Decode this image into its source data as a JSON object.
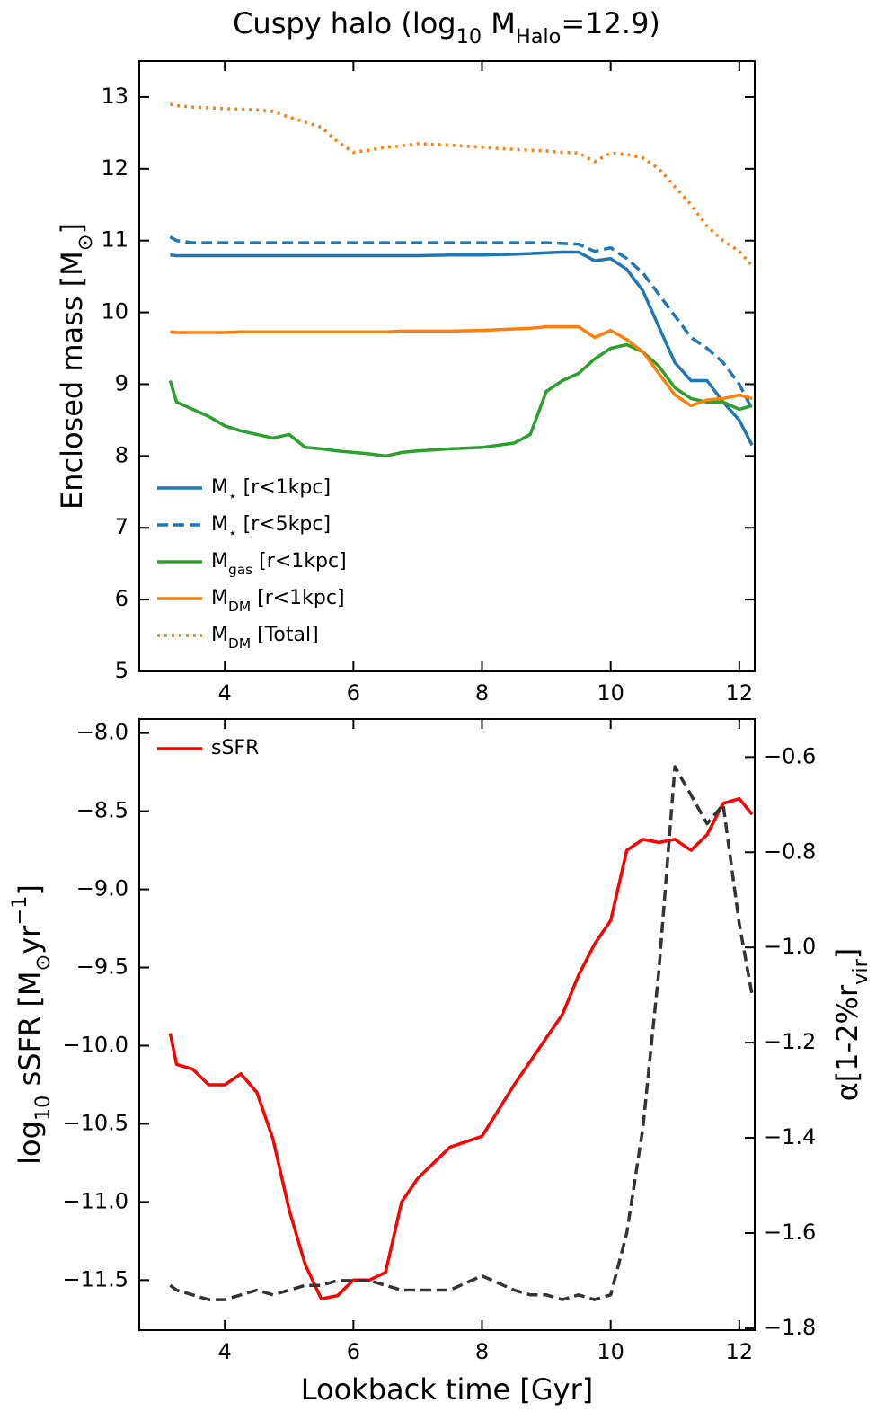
{
  "chart_data": [
    {
      "type": "line",
      "title": [
        "Cuspy halo (log",
        {
          "sub": "10"
        },
        " M",
        {
          "sub": "Halo"
        },
        "=12.9)"
      ],
      "ylabel": [
        "Enclosed mass [M",
        {
          "sub": "⊙"
        },
        "]"
      ],
      "x": [
        3.15,
        3.25,
        3.5,
        3.75,
        4.0,
        4.25,
        4.5,
        4.75,
        5.0,
        5.25,
        5.5,
        5.75,
        6.0,
        6.25,
        6.5,
        6.75,
        7.0,
        7.5,
        8.0,
        8.5,
        8.75,
        9.0,
        9.25,
        9.5,
        9.75,
        10.0,
        10.25,
        10.5,
        10.75,
        11.0,
        11.25,
        11.5,
        11.75,
        12.0,
        12.2
      ],
      "series": [
        {
          "name": [
            "M",
            {
              "sub": "⋆"
            },
            " [r<1kpc]"
          ],
          "color": "#1f77b4",
          "linestyle": "solid",
          "values": [
            10.8,
            10.79,
            10.79,
            10.79,
            10.79,
            10.79,
            10.79,
            10.79,
            10.79,
            10.79,
            10.79,
            10.79,
            10.79,
            10.79,
            10.79,
            10.79,
            10.79,
            10.8,
            10.8,
            10.81,
            10.82,
            10.83,
            10.84,
            10.84,
            10.72,
            10.75,
            10.6,
            10.3,
            9.8,
            9.3,
            9.05,
            9.05,
            8.75,
            8.5,
            8.15
          ]
        },
        {
          "name": [
            "M",
            {
              "sub": "⋆"
            },
            " [r<5kpc]"
          ],
          "color": "#1f77b4",
          "linestyle": "dashed",
          "values": [
            11.05,
            11.0,
            10.97,
            10.97,
            10.97,
            10.97,
            10.97,
            10.97,
            10.97,
            10.97,
            10.97,
            10.97,
            10.97,
            10.97,
            10.97,
            10.97,
            10.97,
            10.97,
            10.97,
            10.97,
            10.97,
            10.97,
            10.96,
            10.95,
            10.85,
            10.9,
            10.75,
            10.55,
            10.25,
            9.95,
            9.65,
            9.5,
            9.3,
            9.0,
            8.65
          ]
        },
        {
          "name": [
            "M",
            {
              "sub": "gas"
            },
            " [r<1kpc]"
          ],
          "color": "#2ca02c",
          "linestyle": "solid",
          "values": [
            9.05,
            8.75,
            8.65,
            8.55,
            8.42,
            8.35,
            8.3,
            8.25,
            8.3,
            8.12,
            8.1,
            8.07,
            8.05,
            8.03,
            8.0,
            8.05,
            8.07,
            8.1,
            8.12,
            8.18,
            8.3,
            8.9,
            9.05,
            9.15,
            9.35,
            9.5,
            9.55,
            9.45,
            9.25,
            8.95,
            8.8,
            8.75,
            8.75,
            8.65,
            8.7
          ]
        },
        {
          "name": [
            "M",
            {
              "sub": "DM"
            },
            " [r<1kpc]"
          ],
          "color": "#ff7f0e",
          "linestyle": "solid",
          "values": [
            9.73,
            9.72,
            9.72,
            9.72,
            9.72,
            9.73,
            9.73,
            9.73,
            9.73,
            9.73,
            9.73,
            9.73,
            9.73,
            9.73,
            9.73,
            9.74,
            9.74,
            9.74,
            9.75,
            9.77,
            9.78,
            9.8,
            9.8,
            9.8,
            9.65,
            9.75,
            9.62,
            9.45,
            9.15,
            8.85,
            8.7,
            8.78,
            8.8,
            8.85,
            8.8
          ]
        },
        {
          "name": [
            "M",
            {
              "sub": "DM"
            },
            " [Total]"
          ],
          "color": "#ff7f0e",
          "linestyle": "dotted",
          "values": [
            12.9,
            12.88,
            12.86,
            12.85,
            12.84,
            12.83,
            12.82,
            12.8,
            12.72,
            12.65,
            12.58,
            12.38,
            12.23,
            12.26,
            12.3,
            12.32,
            12.35,
            12.33,
            12.3,
            12.27,
            12.26,
            12.25,
            12.23,
            12.22,
            12.1,
            12.22,
            12.2,
            12.15,
            12.0,
            11.75,
            11.5,
            11.2,
            11.0,
            10.85,
            10.65
          ]
        }
      ],
      "xlim": [
        2.67,
        12.24
      ],
      "ylim": [
        5,
        13.5
      ],
      "xticks": [
        4,
        6,
        8,
        10,
        12
      ],
      "yticks": [
        5,
        6,
        7,
        8,
        9,
        10,
        11,
        12,
        13
      ],
      "legend": "lower left"
    },
    {
      "type": "line",
      "xlabel": [
        "Lookback time [Gyr]"
      ],
      "ylabel": [
        "log",
        {
          "sub": "10"
        },
        " sSFR [M",
        {
          "sub": "⊙"
        },
        "yr",
        {
          "sup": "−1"
        },
        "]"
      ],
      "y2label": [
        "α[1-2%r",
        {
          "sub": "vir"
        },
        "]"
      ],
      "x": [
        3.15,
        3.25,
        3.5,
        3.75,
        4.0,
        4.25,
        4.5,
        4.75,
        5.0,
        5.25,
        5.5,
        5.75,
        6.0,
        6.25,
        6.5,
        6.75,
        7.0,
        7.5,
        8.0,
        8.5,
        8.75,
        9.0,
        9.25,
        9.5,
        9.75,
        10.0,
        10.25,
        10.5,
        10.75,
        11.0,
        11.25,
        11.5,
        11.75,
        12.0,
        12.2
      ],
      "series": [
        {
          "name": [
            "sSFR"
          ],
          "color": "#ff0000",
          "linestyle": "solid",
          "values": [
            -9.92,
            -10.12,
            -10.15,
            -10.25,
            -10.25,
            -10.18,
            -10.3,
            -10.6,
            -11.05,
            -11.4,
            -11.62,
            -11.6,
            -11.5,
            -11.5,
            -11.45,
            -11.0,
            -10.85,
            -10.65,
            -10.58,
            -10.25,
            -10.1,
            -9.95,
            -9.8,
            -9.55,
            -9.35,
            -9.2,
            -8.75,
            -8.68,
            -8.7,
            -8.68,
            -8.75,
            -8.65,
            -8.45,
            -8.42,
            -8.52
          ]
        },
        {
          "color": "#333333",
          "linestyle": "dashed",
          "axis": "y2",
          "values": [
            -1.71,
            -1.72,
            -1.73,
            -1.74,
            -1.74,
            -1.73,
            -1.72,
            -1.73,
            -1.72,
            -1.71,
            -1.71,
            -1.7,
            -1.7,
            -1.7,
            -1.71,
            -1.72,
            -1.72,
            -1.72,
            -1.69,
            -1.72,
            -1.73,
            -1.73,
            -1.74,
            -1.73,
            -1.74,
            -1.73,
            -1.6,
            -1.38,
            -1.05,
            -0.62,
            -0.68,
            -0.74,
            -0.7,
            -0.95,
            -1.1
          ]
        }
      ],
      "xlim": [
        2.67,
        12.24
      ],
      "ylim": [
        -11.82,
        -7.91
      ],
      "y2lim": [
        -1.804,
        -0.52
      ],
      "xticks": [
        4,
        6,
        8,
        10,
        12
      ],
      "yticks": [
        {
          "value": -8.0,
          "label": "−8.0"
        },
        {
          "value": -8.5,
          "label": "−8.5"
        },
        {
          "value": -9.0,
          "label": "−9.0"
        },
        {
          "value": -9.5,
          "label": "−9.5"
        },
        {
          "value": -10.0,
          "label": "−10.0"
        },
        {
          "value": -10.5,
          "label": "−10.5"
        },
        {
          "value": -11.0,
          "label": "−11.0"
        },
        {
          "value": -11.5,
          "label": "−11.5"
        }
      ],
      "y2ticks": [
        {
          "value": -0.6,
          "label": "−0.6"
        },
        {
          "value": -0.8,
          "label": "−0.8"
        },
        {
          "value": -1.0,
          "label": "−1.0"
        },
        {
          "value": -1.2,
          "label": "−1.2"
        },
        {
          "value": -1.4,
          "label": "−1.4"
        },
        {
          "value": -1.6,
          "label": "−1.6"
        },
        {
          "value": -1.8,
          "label": "−1.8"
        }
      ],
      "legend": "upper left"
    }
  ]
}
